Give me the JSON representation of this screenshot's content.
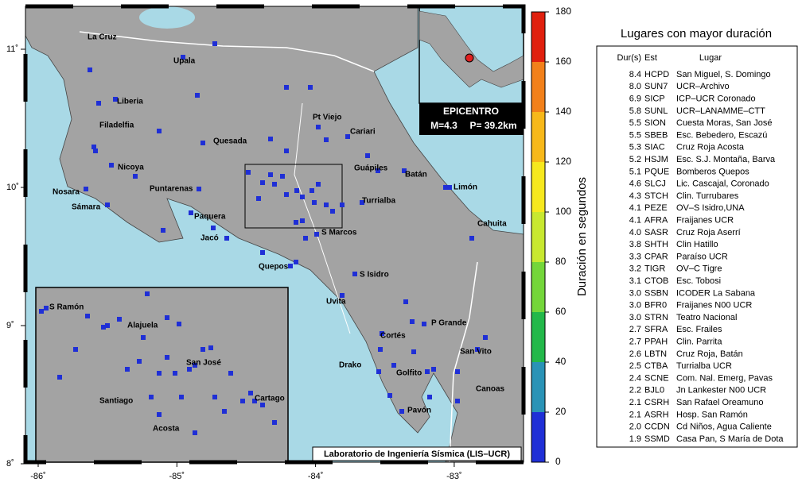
{
  "map": {
    "xticks": [
      {
        "value": -86,
        "label": "-86˚"
      },
      {
        "value": -85,
        "label": "-85˚"
      },
      {
        "value": -84,
        "label": "-84˚"
      },
      {
        "value": -83,
        "label": "-83˚"
      }
    ],
    "yticks": [
      {
        "value": 8,
        "label": "8˚"
      },
      {
        "value": 9,
        "label": "9˚"
      },
      {
        "value": 10,
        "label": "10˚"
      },
      {
        "value": 11,
        "label": "11˚"
      }
    ],
    "places": [
      "La Cruz",
      "Upala",
      "Liberia",
      "Filadelfia",
      "Quesada",
      "Pt Viejo",
      "Cariari",
      "Nicoya",
      "Guápiles",
      "Batán",
      "Nosara",
      "Puntarenas",
      "Turrialba",
      "Limón",
      "Sámara",
      "Paquera",
      "Cahuita",
      "S Marcos",
      "Jacó",
      "Quepos",
      "S Isidro",
      "Uvita",
      "P Grande",
      "Cortés",
      "San Vito",
      "Drako",
      "Golfito",
      "Canoas",
      "Pavón"
    ],
    "inset_places": [
      "S Ramón",
      "Alajuela",
      "San José",
      "Santiago",
      "Cartago",
      "Acosta"
    ],
    "epicenter": {
      "title": "EPICENTRO",
      "magnitude": "M=4.3",
      "depth": "P= 39.2km"
    },
    "credit": "Laboratorio de Ingeniería Sísmica (LIS–UCR)"
  },
  "colorbar": {
    "label": "Duración en segundos",
    "lim": [
      0,
      180
    ],
    "ticks": [
      0,
      20,
      40,
      60,
      80,
      100,
      120,
      140,
      160,
      180
    ],
    "colors": [
      "#1f2fd6",
      "#2a93b6",
      "#23b84a",
      "#74d63a",
      "#c8e830",
      "#f6e81e",
      "#f7b81a",
      "#f2801a",
      "#e0200e"
    ]
  },
  "table": {
    "title": "Lugares con mayor duración",
    "headers": [
      "Dur(s)",
      "Est",
      "Lugar"
    ],
    "rows": [
      [
        "8.4",
        "HCPD",
        "San Miguel, S. Domingo"
      ],
      [
        "8.0",
        "SUN7",
        "UCR–Archivo"
      ],
      [
        "6.9",
        "SICP",
        "ICP–UCR Coronado"
      ],
      [
        "5.8",
        "SUNL",
        "UCR–LANAMME–CTT"
      ],
      [
        "5.5",
        "SION",
        "Cuesta Moras, San José"
      ],
      [
        "5.5",
        "SBEB",
        "Esc. Bebedero, Escazú"
      ],
      [
        "5.3",
        "SIAC",
        "Cruz Roja Acosta"
      ],
      [
        "5.2",
        "HSJM",
        "Esc. S.J. Montaña, Barva"
      ],
      [
        "5.1",
        "PQUE",
        "Bomberos Quepos"
      ],
      [
        "4.6",
        "SLCJ",
        "Lic. Cascajal, Coronado"
      ],
      [
        "4.3",
        "STCH",
        "Clin. Turrubares"
      ],
      [
        "4.1",
        "PEZE",
        "OV–S Isidro,UNA"
      ],
      [
        "4.1",
        "AFRA",
        "Fraijanes UCR"
      ],
      [
        "4.0",
        "SASR",
        "Cruz Roja Aserrí"
      ],
      [
        "3.8",
        "SHTH",
        "Clin Hatillo"
      ],
      [
        "3.3",
        "CPAR",
        "Paraíso UCR"
      ],
      [
        "3.2",
        "TIGR",
        "OV–C Tigre"
      ],
      [
        "3.1",
        "CTOB",
        "Esc. Tobosi"
      ],
      [
        "3.0",
        "SSBN",
        "ICODER La Sabana"
      ],
      [
        "3.0",
        "BFR0",
        "Fraijanes N00 UCR"
      ],
      [
        "3.0",
        "STRN",
        "Teatro Nacional"
      ],
      [
        "2.7",
        "SFRA",
        "Esc. Frailes"
      ],
      [
        "2.7",
        "PPAH",
        "Clin. Parrita"
      ],
      [
        "2.6",
        "LBTN",
        "Cruz Roja, Batán"
      ],
      [
        "2.5",
        "CTBA",
        "Turrialba UCR"
      ],
      [
        "2.4",
        "SCNE",
        "Com. Nal. Emerg, Pavas"
      ],
      [
        "2.2",
        "BJL0",
        "Jn Lankester N00 UCR"
      ],
      [
        "2.1",
        "CSRH",
        "San Rafael Oreamuno"
      ],
      [
        "2.1",
        "ASRH",
        "Hosp. San Ramón"
      ],
      [
        "2.0",
        "CCDN",
        "Cd Niños, Agua Caliente"
      ],
      [
        "1.9",
        "SSMD",
        "Casa Pan, S María de Dota"
      ]
    ]
  }
}
